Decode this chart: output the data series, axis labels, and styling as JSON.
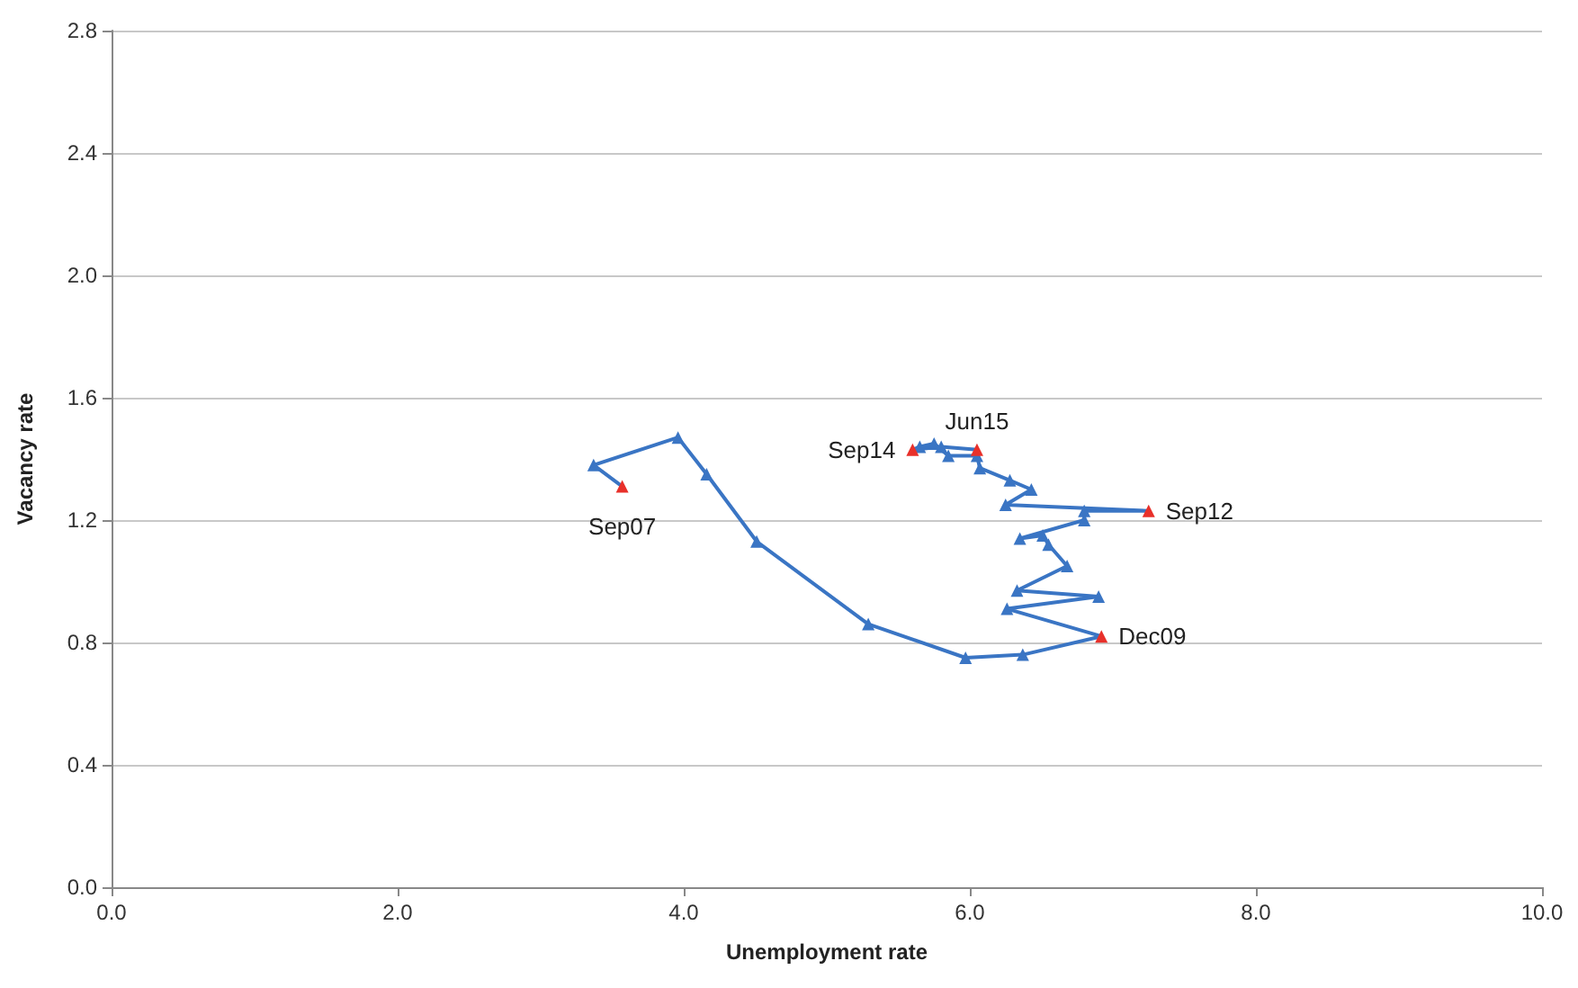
{
  "chart_data": {
    "type": "line",
    "xlabel": "Unemployment rate",
    "ylabel": "Vacancy rate",
    "x": [
      3.57,
      3.37,
      3.96,
      4.16,
      4.51,
      5.29,
      5.97,
      6.37,
      6.92,
      6.26,
      6.9,
      6.33,
      6.68,
      6.55,
      6.51,
      6.35,
      6.8,
      6.8,
      7.25,
      6.25,
      6.43,
      6.28,
      6.07,
      6.05,
      5.85,
      5.75,
      5.65,
      5.6,
      5.8,
      6.05
    ],
    "series": [
      {
        "color": "#3a75c4",
        "values": [
          1.31,
          1.38,
          1.47,
          1.35,
          1.13,
          0.86,
          0.75,
          0.76,
          0.82,
          0.91,
          0.95,
          0.97,
          1.05,
          1.12,
          1.15,
          1.14,
          1.2,
          1.23,
          1.23,
          1.25,
          1.3,
          1.33,
          1.37,
          1.41,
          1.41,
          1.45,
          1.44,
          1.43,
          1.44,
          1.43
        ],
        "colors": [
          "#e8302a",
          "#3a75c4",
          "#3a75c4",
          "#3a75c4",
          "#3a75c4",
          "#3a75c4",
          "#3a75c4",
          "#3a75c4",
          "#e8302a",
          "#3a75c4",
          "#3a75c4",
          "#3a75c4",
          "#3a75c4",
          "#3a75c4",
          "#3a75c4",
          "#3a75c4",
          "#3a75c4",
          "#3a75c4",
          "#e8302a",
          "#3a75c4",
          "#3a75c4",
          "#3a75c4",
          "#3a75c4",
          "#3a75c4",
          "#3a75c4",
          "#3a75c4",
          "#3a75c4",
          "#e8302a",
          "#3a75c4",
          "#e8302a"
        ]
      }
    ],
    "annotations": [
      {
        "text": "Sep07",
        "x": 3.57,
        "y": 1.31
      },
      {
        "text": "Dec09",
        "x": 6.92,
        "y": 0.82
      },
      {
        "text": "Sep12",
        "x": 7.25,
        "y": 1.23
      },
      {
        "text": "Sep14",
        "x": 5.6,
        "y": 1.43
      },
      {
        "text": "Jun15",
        "x": 6.05,
        "y": 1.43
      }
    ],
    "xlim": [
      0,
      10
    ],
    "xticks": [
      {
        "value": 0,
        "label": "0.0"
      },
      {
        "value": 2,
        "label": "2.0"
      },
      {
        "value": 4,
        "label": "4.0"
      },
      {
        "value": 6,
        "label": "6.0"
      },
      {
        "value": 8,
        "label": "8.0"
      },
      {
        "value": 10,
        "label": "10.0"
      }
    ],
    "ylim": [
      0,
      2.8
    ],
    "yticks": [
      {
        "value": 0,
        "label": "0.0"
      },
      {
        "value": 0.4,
        "label": "0.4"
      },
      {
        "value": 0.8,
        "label": "0.8"
      },
      {
        "value": 1.2,
        "label": "1.2"
      },
      {
        "value": 1.6,
        "label": "1.6"
      },
      {
        "value": 2.0,
        "label": "2.0"
      },
      {
        "value": 2.4,
        "label": "2.4"
      },
      {
        "value": 2.8,
        "label": "2.8"
      }
    ],
    "grid": "y",
    "marker": "triangle",
    "line_style": "solid"
  }
}
